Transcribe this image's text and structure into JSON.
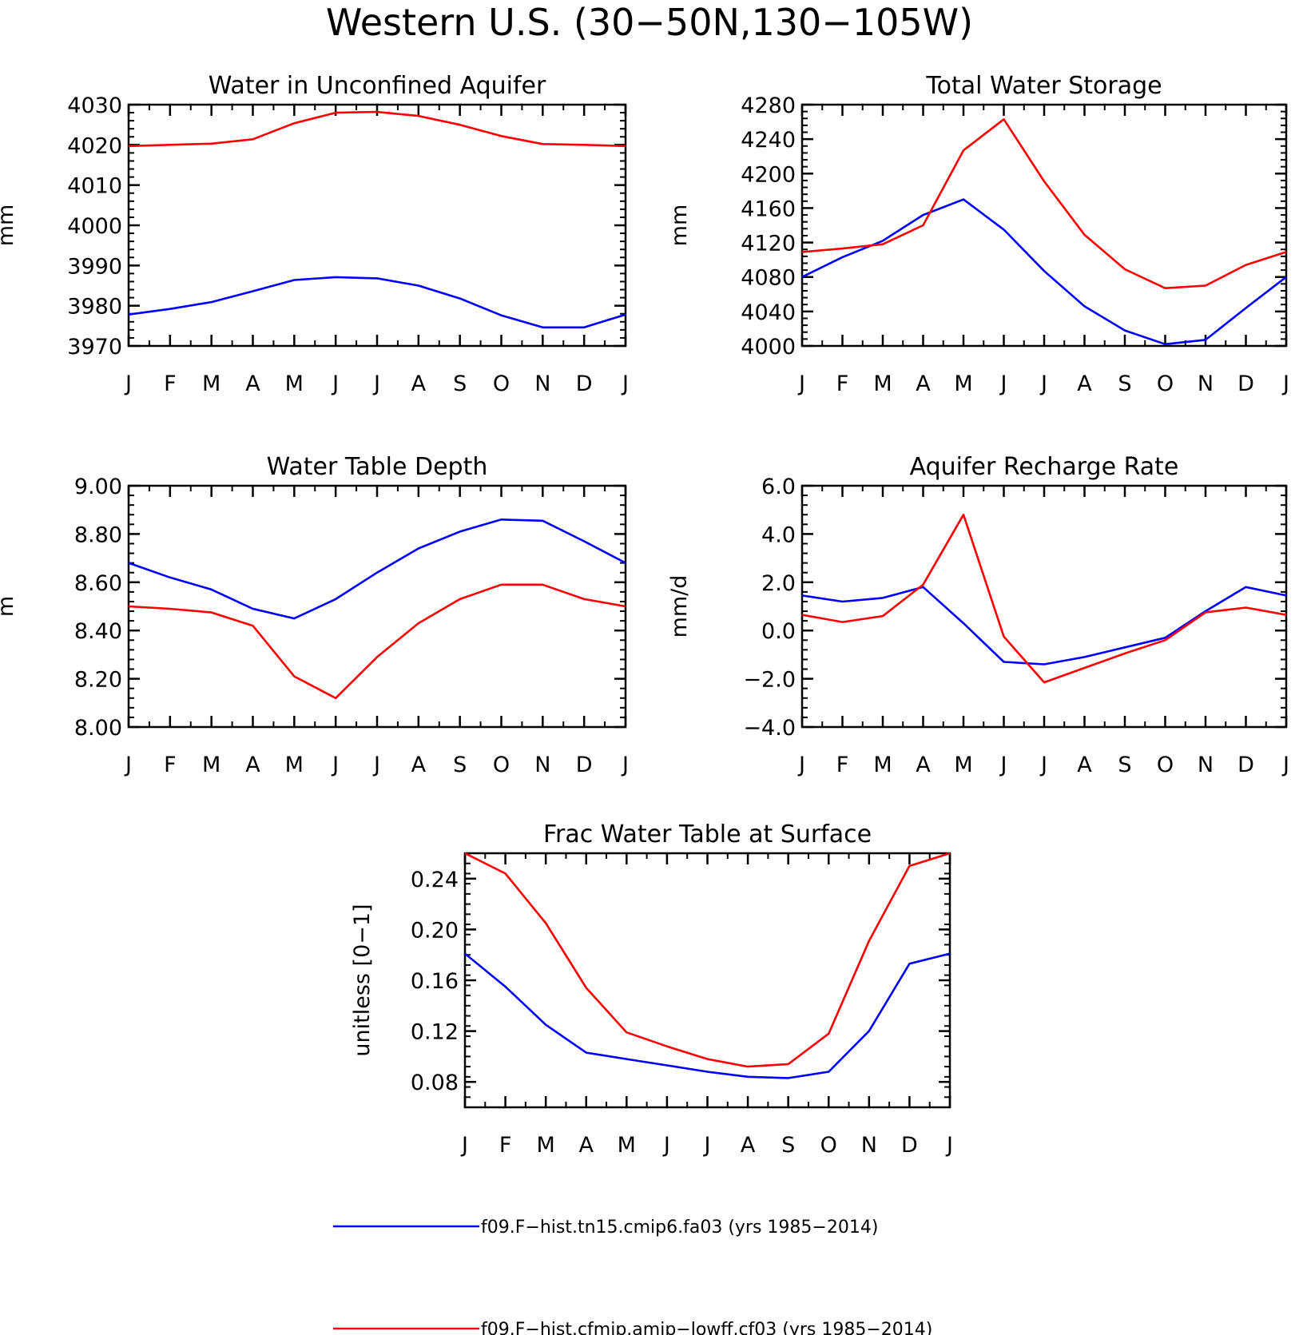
{
  "title": "Western U.S. (30−50N,130−105W)",
  "month_labels": [
    "J",
    "F",
    "M",
    "A",
    "M",
    "J",
    "J",
    "A",
    "S",
    "O",
    "N",
    "D",
    "J"
  ],
  "legend": [
    {
      "label": "f09.F−hist.tn15.cmip6.fa03 (yrs 1985−2014)",
      "color": "#0000ff"
    },
    {
      "label": "f09.F−hist.cfmip.amip−lowff.cf03 (yrs 1985−2014)",
      "color": "#ff0000"
    }
  ],
  "colors": {
    "series_1": "#0000ff",
    "series_2": "#ff0000",
    "axes": "#000000"
  },
  "chart_data": [
    {
      "type": "line",
      "title": "Water in Unconfined Aquifer",
      "ylabel": "mm",
      "ylim": [
        3970,
        4030
      ],
      "yticks": [
        3970,
        3980,
        3990,
        4000,
        4010,
        4020,
        4030
      ],
      "ytick_labels": [
        "3970",
        "3980",
        "3990",
        "4000",
        "4010",
        "4020",
        "4030"
      ],
      "x": [
        "J",
        "F",
        "M",
        "A",
        "M",
        "J",
        "J",
        "A",
        "S",
        "O",
        "N",
        "D",
        "J"
      ],
      "series": [
        {
          "color": "#0000ff",
          "values": [
            3977.8,
            3979.2,
            3980.9,
            3983.6,
            3986.4,
            3987.1,
            3986.8,
            3985.0,
            3981.8,
            3977.6,
            3974.6,
            3974.6,
            3977.8
          ]
        },
        {
          "color": "#ff0000",
          "values": [
            4019.7,
            4020.0,
            4020.3,
            4021.4,
            4025.4,
            4028.0,
            4028.2,
            4027.2,
            4025.0,
            4022.2,
            4020.2,
            4020.0,
            4019.7
          ]
        }
      ]
    },
    {
      "type": "line",
      "title": "Total Water Storage",
      "ylabel": "mm",
      "ylim": [
        4000,
        4280
      ],
      "yticks": [
        4000,
        4040,
        4080,
        4120,
        4160,
        4200,
        4240,
        4280
      ],
      "ytick_labels": [
        "4000",
        "4040",
        "4080",
        "4120",
        "4160",
        "4200",
        "4240",
        "4280"
      ],
      "x": [
        "J",
        "F",
        "M",
        "A",
        "M",
        "J",
        "J",
        "A",
        "S",
        "O",
        "N",
        "D",
        "J"
      ],
      "series": [
        {
          "color": "#0000ff",
          "values": [
            4080,
            4103,
            4122,
            4152,
            4170,
            4135,
            4087,
            4046,
            4018,
            4002,
            4007,
            4044,
            4080
          ]
        },
        {
          "color": "#ff0000",
          "values": [
            4109,
            4113,
            4118,
            4140,
            4227,
            4263,
            4191,
            4129,
            4089,
            4067,
            4070,
            4094,
            4109
          ]
        }
      ]
    },
    {
      "type": "line",
      "title": "Water Table Depth",
      "ylabel": "m",
      "ylim": [
        8.0,
        9.0
      ],
      "yticks": [
        8.0,
        8.2,
        8.4,
        8.6,
        8.8,
        9.0
      ],
      "ytick_labels": [
        "8.00",
        "8.20",
        "8.40",
        "8.60",
        "8.80",
        "9.00"
      ],
      "x": [
        "J",
        "F",
        "M",
        "A",
        "M",
        "J",
        "J",
        "A",
        "S",
        "O",
        "N",
        "D",
        "J"
      ],
      "series": [
        {
          "color": "#0000ff",
          "values": [
            8.68,
            8.62,
            8.57,
            8.49,
            8.45,
            8.53,
            8.64,
            8.74,
            8.81,
            8.86,
            8.855,
            8.77,
            8.68
          ]
        },
        {
          "color": "#ff0000",
          "values": [
            8.5,
            8.49,
            8.475,
            8.42,
            8.21,
            8.12,
            8.29,
            8.43,
            8.53,
            8.59,
            8.59,
            8.53,
            8.5
          ]
        }
      ]
    },
    {
      "type": "line",
      "title": "Aquifer Recharge Rate",
      "ylabel": "mm/d",
      "ylim": [
        -4.0,
        6.0
      ],
      "yticks": [
        -4.0,
        -2.0,
        0.0,
        2.0,
        4.0,
        6.0
      ],
      "ytick_labels": [
        "−4.0",
        "−2.0",
        "0.0",
        "2.0",
        "4.0",
        "6.0"
      ],
      "x": [
        "J",
        "F",
        "M",
        "A",
        "M",
        "J",
        "J",
        "A",
        "S",
        "O",
        "N",
        "D",
        "J"
      ],
      "series": [
        {
          "color": "#0000ff",
          "values": [
            1.45,
            1.2,
            1.35,
            1.8,
            0.3,
            -1.3,
            -1.4,
            -1.1,
            -0.7,
            -0.3,
            0.8,
            1.8,
            1.45
          ]
        },
        {
          "color": "#ff0000",
          "values": [
            0.65,
            0.35,
            0.6,
            1.9,
            4.8,
            -0.25,
            -2.15,
            -1.55,
            -0.95,
            -0.4,
            0.75,
            0.95,
            0.65
          ]
        }
      ]
    },
    {
      "type": "line",
      "title": "Frac Water Table at Surface",
      "ylabel": "unitless [0−1]",
      "ylim": [
        0.06,
        0.26
      ],
      "yticks": [
        0.08,
        0.12,
        0.16,
        0.2,
        0.24
      ],
      "ytick_labels": [
        "0.08",
        "0.12",
        "0.16",
        "0.20",
        "0.24"
      ],
      "x": [
        "J",
        "F",
        "M",
        "A",
        "M",
        "J",
        "J",
        "A",
        "S",
        "O",
        "N",
        "D",
        "J"
      ],
      "series": [
        {
          "color": "#0000ff",
          "values": [
            0.181,
            0.155,
            0.125,
            0.103,
            0.098,
            0.093,
            0.088,
            0.084,
            0.083,
            0.088,
            0.12,
            0.173,
            0.181
          ]
        },
        {
          "color": "#ff0000",
          "values": [
            0.26,
            0.244,
            0.205,
            0.154,
            0.119,
            0.108,
            0.098,
            0.092,
            0.094,
            0.118,
            0.191,
            0.25,
            0.26
          ]
        }
      ]
    }
  ]
}
